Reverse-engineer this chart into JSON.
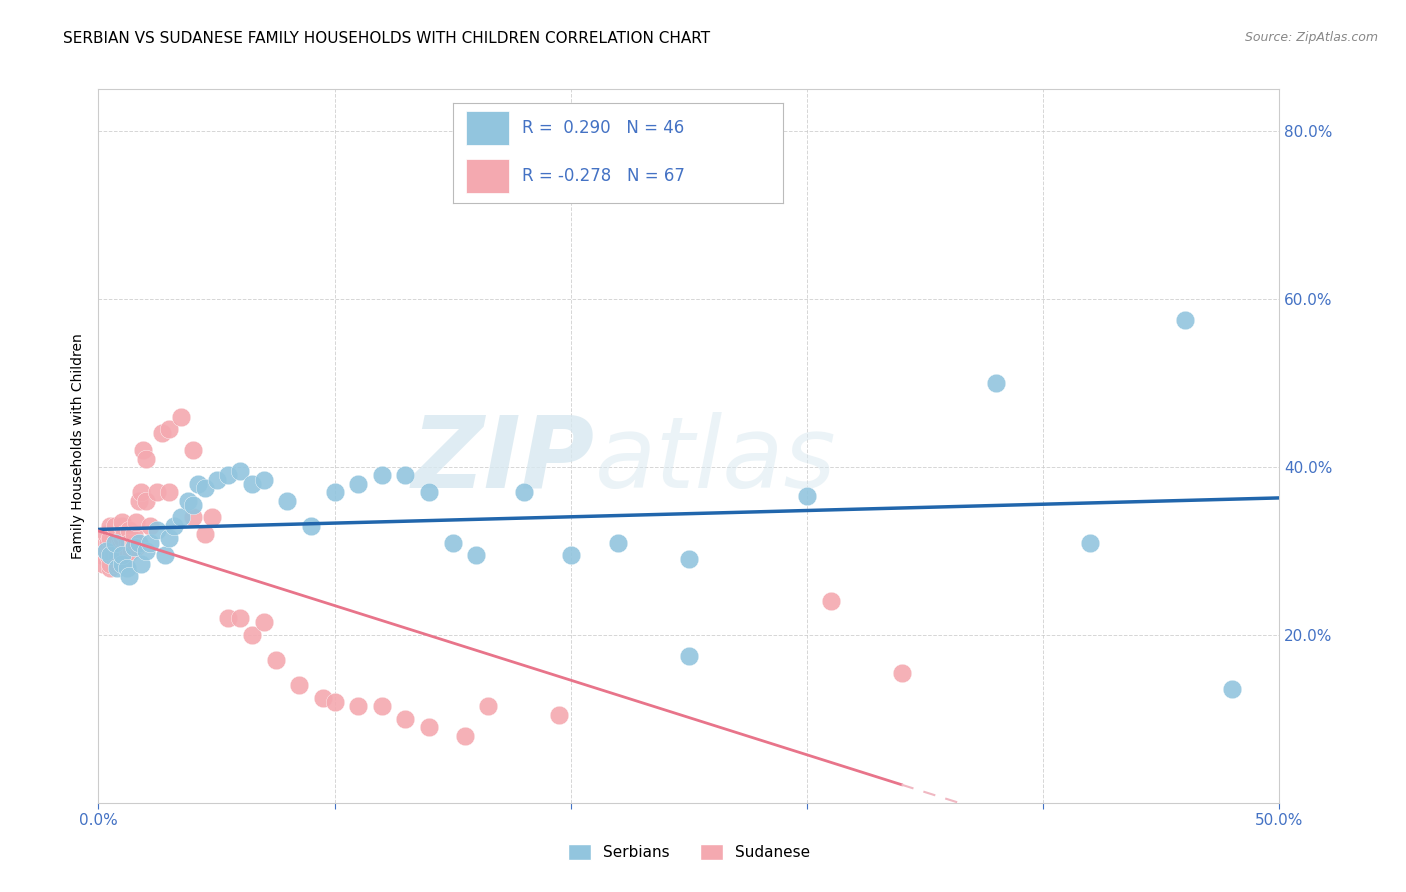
{
  "title": "SERBIAN VS SUDANESE FAMILY HOUSEHOLDS WITH CHILDREN CORRELATION CHART",
  "source": "Source: ZipAtlas.com",
  "ylabel": "Family Households with Children",
  "xlim": [
    0.0,
    0.5
  ],
  "ylim": [
    0.0,
    0.85
  ],
  "xticks": [
    0.0,
    0.1,
    0.2,
    0.3,
    0.4,
    0.5
  ],
  "yticks": [
    0.0,
    0.2,
    0.4,
    0.6,
    0.8
  ],
  "watermark_zip": "ZIP",
  "watermark_atlas": "atlas",
  "serbian_color": "#92c5de",
  "sudanese_color": "#f4a9b0",
  "serbian_line_color": "#2166ac",
  "sudanese_line_solid_color": "#e8748a",
  "sudanese_line_dash_color": "#f0b8c2",
  "background_color": "#ffffff",
  "grid_color": "#cccccc",
  "tick_color": "#4472c4",
  "title_fontsize": 11,
  "axis_label_fontsize": 10,
  "tick_fontsize": 11,
  "serbian_R": 0.29,
  "serbian_N": 46,
  "sudanese_R": -0.278,
  "sudanese_N": 67,
  "serbian_scatter_x": [
    0.003,
    0.005,
    0.007,
    0.008,
    0.01,
    0.01,
    0.012,
    0.013,
    0.015,
    0.017,
    0.018,
    0.02,
    0.022,
    0.025,
    0.028,
    0.03,
    0.032,
    0.035,
    0.038,
    0.04,
    0.042,
    0.045,
    0.05,
    0.055,
    0.06,
    0.065,
    0.07,
    0.08,
    0.09,
    0.1,
    0.11,
    0.12,
    0.13,
    0.14,
    0.15,
    0.16,
    0.18,
    0.2,
    0.22,
    0.25,
    0.25,
    0.3,
    0.38,
    0.42,
    0.46,
    0.48
  ],
  "serbian_scatter_y": [
    0.3,
    0.295,
    0.31,
    0.28,
    0.285,
    0.295,
    0.28,
    0.27,
    0.305,
    0.31,
    0.285,
    0.3,
    0.31,
    0.325,
    0.295,
    0.315,
    0.33,
    0.34,
    0.36,
    0.355,
    0.38,
    0.375,
    0.385,
    0.39,
    0.395,
    0.38,
    0.385,
    0.36,
    0.33,
    0.37,
    0.38,
    0.39,
    0.39,
    0.37,
    0.31,
    0.295,
    0.37,
    0.295,
    0.31,
    0.29,
    0.175,
    0.365,
    0.5,
    0.31,
    0.575,
    0.135
  ],
  "sudanese_scatter_x": [
    0.001,
    0.001,
    0.002,
    0.003,
    0.003,
    0.004,
    0.004,
    0.005,
    0.005,
    0.005,
    0.005,
    0.005,
    0.006,
    0.006,
    0.007,
    0.007,
    0.008,
    0.008,
    0.009,
    0.009,
    0.01,
    0.01,
    0.01,
    0.01,
    0.011,
    0.011,
    0.012,
    0.012,
    0.013,
    0.013,
    0.014,
    0.015,
    0.015,
    0.016,
    0.016,
    0.017,
    0.018,
    0.019,
    0.02,
    0.02,
    0.022,
    0.025,
    0.027,
    0.03,
    0.03,
    0.035,
    0.04,
    0.04,
    0.045,
    0.048,
    0.055,
    0.06,
    0.065,
    0.07,
    0.075,
    0.085,
    0.095,
    0.1,
    0.11,
    0.12,
    0.13,
    0.14,
    0.155,
    0.165,
    0.195,
    0.31,
    0.34
  ],
  "sudanese_scatter_y": [
    0.295,
    0.305,
    0.285,
    0.3,
    0.32,
    0.31,
    0.295,
    0.28,
    0.285,
    0.3,
    0.315,
    0.33,
    0.3,
    0.295,
    0.31,
    0.33,
    0.285,
    0.295,
    0.31,
    0.305,
    0.3,
    0.315,
    0.33,
    0.335,
    0.32,
    0.29,
    0.31,
    0.295,
    0.325,
    0.31,
    0.3,
    0.31,
    0.32,
    0.305,
    0.335,
    0.36,
    0.37,
    0.42,
    0.36,
    0.41,
    0.33,
    0.37,
    0.44,
    0.37,
    0.445,
    0.46,
    0.34,
    0.42,
    0.32,
    0.34,
    0.22,
    0.22,
    0.2,
    0.215,
    0.17,
    0.14,
    0.125,
    0.12,
    0.115,
    0.115,
    0.1,
    0.09,
    0.08,
    0.115,
    0.105,
    0.24,
    0.155
  ]
}
